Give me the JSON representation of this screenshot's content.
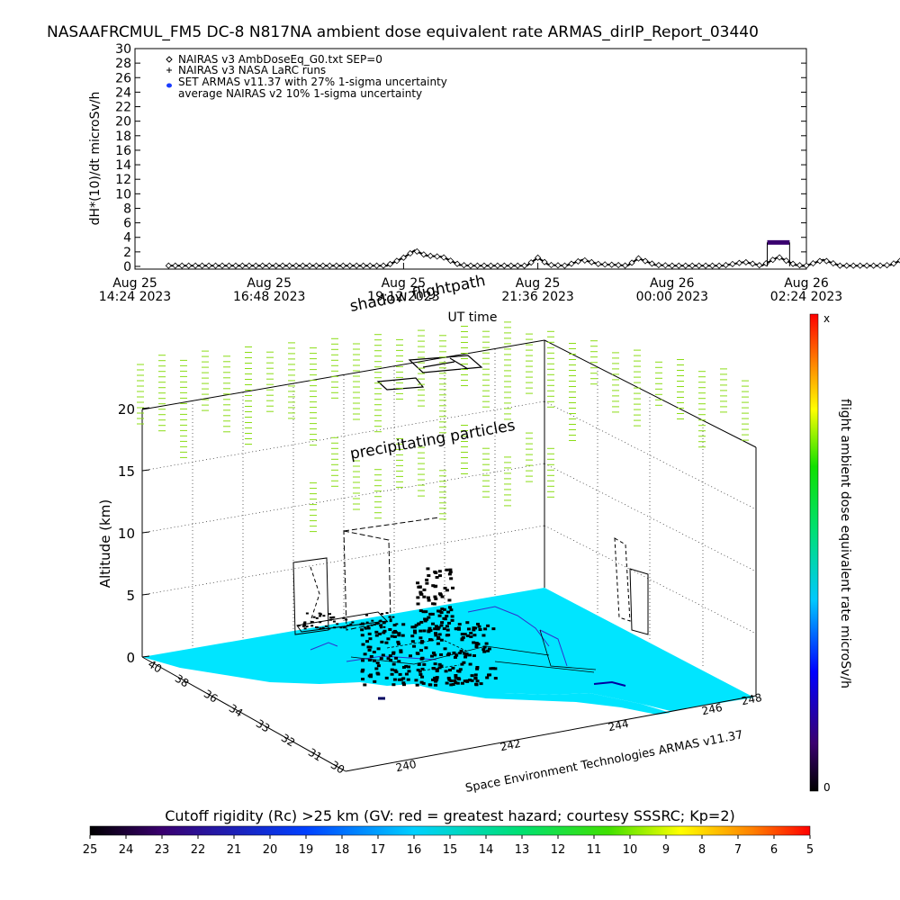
{
  "chart_data": [
    {
      "type": "scatter",
      "title": "NASAAFRCMUL_FM5 DC-8   N817NA ambient dose equivalent rate ARMAS_dirIP_Report_03440",
      "ylabel": "dH*(10)/dt microSv/h",
      "xlabel": "UT time",
      "ylim": [
        0,
        30
      ],
      "yticks": [
        "0",
        "2",
        "4",
        "6",
        "8",
        "10",
        "12",
        "14",
        "16",
        "18",
        "20",
        "22",
        "24",
        "26",
        "28",
        "30"
      ],
      "xticks": [
        {
          "line1": "Aug 25",
          "line2": "14:24 2023"
        },
        {
          "line1": "Aug 25",
          "line2": "16:48 2023"
        },
        {
          "line1": "Aug 25",
          "line2": "19:12 2023"
        },
        {
          "line1": "Aug 25",
          "line2": "21:36 2023"
        },
        {
          "line1": "Aug 26",
          "line2": "00:00 2023"
        },
        {
          "line1": "Aug 26",
          "line2": "02:24 2023"
        }
      ],
      "legend": [
        "NAIRAS v3 AmbDoseEq_G0.txt SEP=0",
        "NAIRAS v3 NASA LaRC runs",
        "SET ARMAS v11.37 with 27% 1-sigma uncertainty",
        "average NAIRAS v2 10% 1-sigma uncertainty"
      ],
      "legend_position": "top-left",
      "series": [
        {
          "name": "NAIRAS v3 AmbDoseEq_G0.txt SEP=0",
          "x_hours": [
            0.6,
            1,
            1.5,
            2,
            2.5,
            3,
            3.5,
            4,
            4.5,
            4.8,
            5,
            5.2,
            5.5,
            5.8,
            6,
            6.5,
            7,
            7.2,
            7.4,
            7.7,
            8,
            8.3,
            8.6,
            8.8,
            9,
            9.3,
            9.6,
            10,
            10.5,
            10.9,
            11.2,
            11.5,
            11.8,
            12,
            12.3,
            12.6,
            13,
            13.3,
            13.5,
            13.8,
            14,
            14.3,
            14.7
          ],
          "values": [
            0.1,
            0.1,
            0.1,
            0.1,
            0.1,
            0.1,
            0.1,
            0.1,
            0.1,
            1.2,
            2.2,
            1.5,
            1.3,
            0.2,
            0.1,
            0.1,
            0.1,
            1.2,
            0.2,
            0.1,
            0.9,
            0.3,
            0.2,
            0.1,
            1.1,
            0.2,
            0.1,
            0.1,
            0.1,
            0.6,
            0.1,
            1.3,
            0.2,
            0.1,
            0.9,
            0.1,
            0.1,
            0.1,
            0.2,
            1.2,
            1.1,
            0.3,
            0.1
          ]
        },
        {
          "name": "SET ARMAS v11.37 with 27% 1-sigma uncertainty",
          "x_hours": [
            11.3,
            11.4,
            11.5,
            11.6,
            11.7
          ],
          "values": [
            3.3,
            3.3,
            3.3,
            3.3,
            3.3
          ]
        }
      ],
      "grid": false
    },
    {
      "type": "scatter",
      "zlabel": "Altitude (km)",
      "zticks": [
        "0",
        "5",
        "10",
        "15",
        "20"
      ],
      "lat_ticks": [
        "30",
        "31",
        "32",
        "33",
        "34",
        "36",
        "38",
        "40"
      ],
      "lon_ticks": [
        "240",
        "242",
        "244",
        "246",
        "248"
      ],
      "annotations": [
        "shadow flightpath",
        "precipitating particles"
      ],
      "credit": "Space Environment Technologies ARMAS v11.37",
      "grid": true
    },
    {
      "type": "heatmap",
      "colorbar_label": "flight ambient dose equivalent rate microSv/h",
      "colorbar_top": "x",
      "colorbar_bottom": "0"
    },
    {
      "type": "heatmap",
      "colorbar_label": "Cutoff rigidity (Rc) >25 km (GV: red = greatest hazard; courtesy SSSRC; Kp=2)",
      "ticks": [
        "25",
        "24",
        "23",
        "22",
        "21",
        "20",
        "19",
        "18",
        "17",
        "16",
        "15",
        "14",
        "13",
        "12",
        "11",
        "10",
        "9",
        "8",
        "7",
        "6",
        "5"
      ]
    }
  ],
  "colors": {
    "ground": "#00e5ff",
    "precip": "#8bdc16",
    "armas_marker": "#3a006f"
  }
}
